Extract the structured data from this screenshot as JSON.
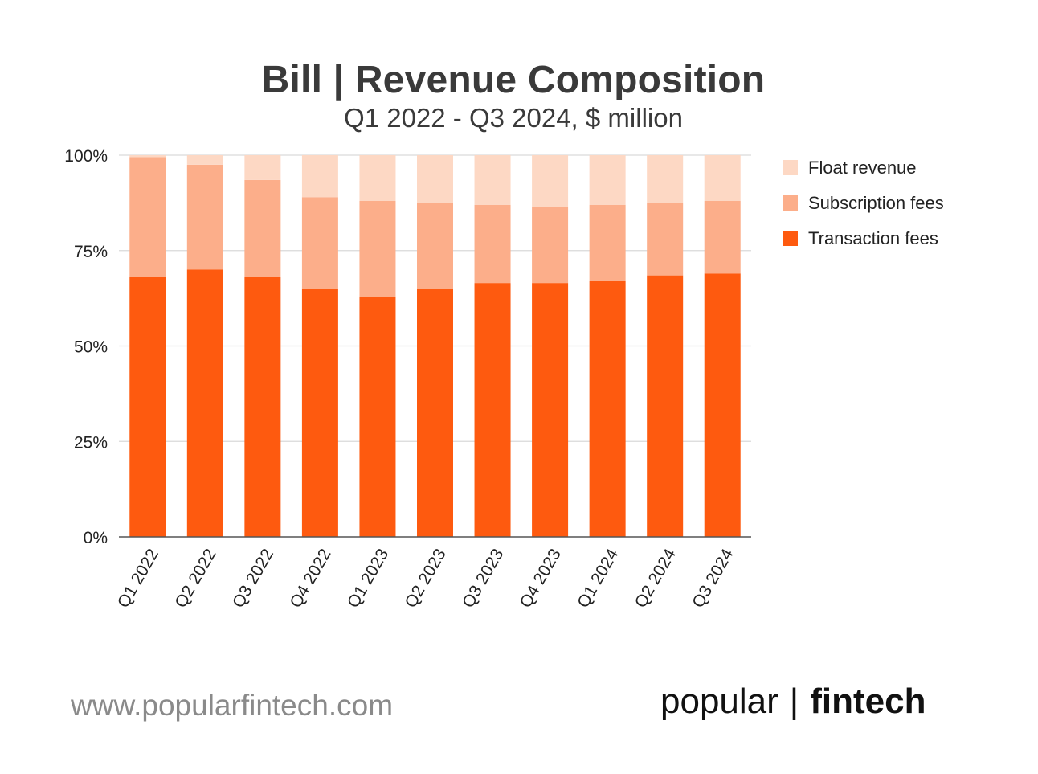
{
  "chart_data": {
    "type": "bar",
    "stacked": true,
    "normalized": true,
    "title": "Bill | Revenue Composition",
    "subtitle": "Q1 2022 - Q3 2024, $ million",
    "categories": [
      "Q1 2022",
      "Q2 2022",
      "Q3 2022",
      "Q4 2022",
      "Q1 2023",
      "Q2 2023",
      "Q3 2023",
      "Q4 2023",
      "Q1 2024",
      "Q2 2024",
      "Q3 2024"
    ],
    "series": [
      {
        "name": "Transaction fees",
        "color": "#fe5a0f",
        "values": [
          68,
          70,
          68,
          65,
          63,
          65,
          66.5,
          66.5,
          67,
          68.5,
          69
        ]
      },
      {
        "name": "Subscription fees",
        "color": "#fcae8a",
        "values": [
          31.5,
          27.5,
          25.5,
          24,
          25,
          22.5,
          20.5,
          20,
          20,
          19,
          19
        ]
      },
      {
        "name": "Float revenue",
        "color": "#fdd8c4",
        "values": [
          0.5,
          2.5,
          6.5,
          11,
          12,
          12.5,
          13,
          13.5,
          13,
          12.5,
          12
        ]
      }
    ],
    "yticks": [
      "0%",
      "25%",
      "50%",
      "75%",
      "100%"
    ],
    "ylim": [
      0,
      100
    ],
    "legend_position": "right",
    "legend_order": [
      "Float revenue",
      "Subscription fees",
      "Transaction fees"
    ],
    "grid": true
  },
  "footer": {
    "url": "www.popularfintech.com",
    "brand_left": "popular",
    "brand_sep": "|",
    "brand_right": "fintech"
  }
}
